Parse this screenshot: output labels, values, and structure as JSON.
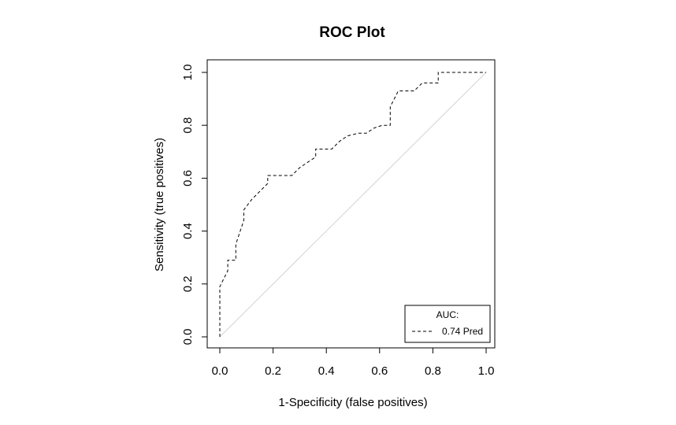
{
  "chart_data": {
    "type": "line",
    "title": "ROC Plot",
    "xlabel": "1-Specificity (false positives)",
    "ylabel": "Sensitivity (true positives)",
    "xlim": [
      0,
      1
    ],
    "ylim": [
      0,
      1
    ],
    "xticks": [
      "0.0",
      "0.2",
      "0.4",
      "0.6",
      "0.8",
      "1.0"
    ],
    "yticks": [
      "0.0",
      "0.2",
      "0.4",
      "0.6",
      "0.8",
      "1.0"
    ],
    "grid": false,
    "legend": {
      "title": "AUC:",
      "entries": [
        "0.74 Pred"
      ],
      "placement": "bottom-right"
    },
    "series": [
      {
        "style": "dashed",
        "color": "#000000",
        "x": [
          0.0,
          0.0,
          0.03,
          0.03,
          0.06,
          0.06,
          0.08,
          0.09,
          0.09,
          0.12,
          0.15,
          0.18,
          0.18,
          0.27,
          0.3,
          0.33,
          0.36,
          0.36,
          0.42,
          0.45,
          0.48,
          0.52,
          0.55,
          0.58,
          0.61,
          0.64,
          0.64,
          0.67,
          0.73,
          0.76,
          0.82,
          0.82,
          1.0
        ],
        "y": [
          0.0,
          0.19,
          0.25,
          0.29,
          0.29,
          0.35,
          0.41,
          0.44,
          0.48,
          0.52,
          0.55,
          0.58,
          0.61,
          0.61,
          0.64,
          0.66,
          0.68,
          0.71,
          0.71,
          0.74,
          0.76,
          0.77,
          0.77,
          0.79,
          0.8,
          0.8,
          0.87,
          0.93,
          0.93,
          0.96,
          0.96,
          1.0,
          1.0
        ]
      }
    ],
    "reference_line": {
      "color": "#d3d3d3",
      "x": [
        0,
        1
      ],
      "y": [
        0,
        1
      ]
    }
  }
}
